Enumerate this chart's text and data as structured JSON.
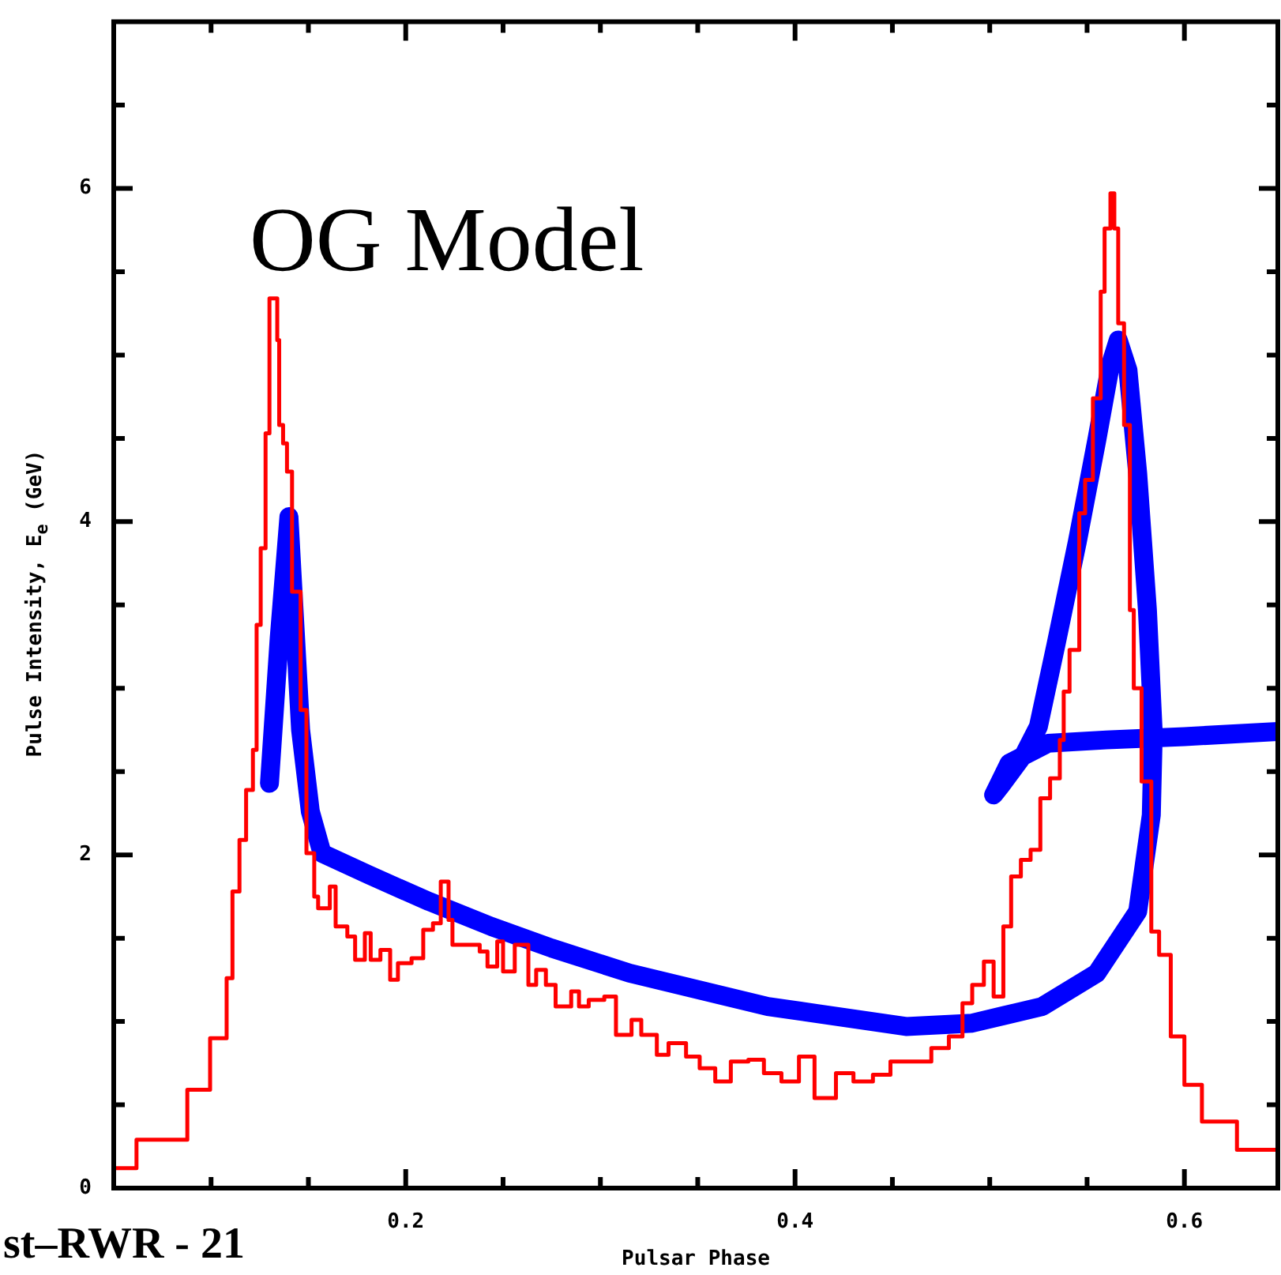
{
  "chart_data": {
    "type": "step",
    "xlabel": "Pulsar Phase",
    "ylabel": "Pulse Intensity, E$_{e}$ (GeV)",
    "annotations": [
      "OG Model",
      "st–RWR - 21"
    ],
    "xlim": [
      0.05,
      0.648
    ],
    "ylim": [
      0,
      7
    ],
    "xticks": [
      {
        "value": 0.05,
        "label": null
      },
      {
        "value": 0.1,
        "label": null
      },
      {
        "value": 0.15,
        "label": null
      },
      {
        "value": 0.2,
        "label": "0.2"
      },
      {
        "value": 0.25,
        "label": null
      },
      {
        "value": 0.3,
        "label": null
      },
      {
        "value": 0.35,
        "label": null
      },
      {
        "value": 0.4,
        "label": "0.4"
      },
      {
        "value": 0.45,
        "label": null
      },
      {
        "value": 0.5,
        "label": null
      },
      {
        "value": 0.55,
        "label": null
      },
      {
        "value": 0.6,
        "label": "0.6"
      }
    ],
    "yticks": [
      0,
      {
        "value": 0.5,
        "label": null
      },
      {
        "value": 1,
        "label": null
      },
      {
        "value": 1.5,
        "label": null
      },
      2,
      {
        "value": 2.5,
        "label": null
      },
      {
        "value": 3,
        "label": null
      },
      {
        "value": 3.5,
        "label": null
      },
      4,
      {
        "value": 4.5,
        "label": null
      },
      {
        "value": 5,
        "label": null
      },
      {
        "value": 5.5,
        "label": null
      },
      6,
      {
        "value": 6.5,
        "label": null
      }
    ],
    "marker": "none",
    "series": [
      {
        "color": "#ff0000",
        "x": [
          0.05,
          0.0617,
          0.0878,
          0.0995,
          0.108,
          0.111,
          0.1146,
          0.118,
          0.1215,
          0.1234,
          0.1255,
          0.128,
          0.13,
          0.134,
          0.135,
          0.137,
          0.139,
          0.1416,
          0.146,
          0.149,
          0.153,
          0.155,
          0.161,
          0.164,
          0.17,
          0.174,
          0.179,
          0.182,
          0.187,
          0.192,
          0.196,
          0.203,
          0.209,
          0.214,
          0.218,
          0.222,
          0.224,
          0.238,
          0.242,
          0.247,
          0.25,
          0.256,
          0.263,
          0.267,
          0.272,
          0.277,
          0.285,
          0.289,
          0.294,
          0.302,
          0.308,
          0.316,
          0.321,
          0.329,
          0.335,
          0.344,
          0.351,
          0.359,
          0.367,
          0.376,
          0.384,
          0.393,
          0.402,
          0.41,
          0.421,
          0.43,
          0.44,
          0.449,
          0.458,
          0.47,
          0.479,
          0.486,
          0.491,
          0.497,
          0.502,
          0.507,
          0.511,
          0.516,
          0.521,
          0.526,
          0.531,
          0.536,
          0.538,
          0.541,
          0.546,
          0.549,
          0.553,
          0.557,
          0.559,
          0.562,
          0.564,
          0.566,
          0.569,
          0.572,
          0.574,
          0.578,
          0.583,
          0.587,
          0.593,
          0.6,
          0.609,
          0.627,
          0.648
        ],
        "values": [
          0.12,
          0.29,
          0.59,
          0.9,
          1.26,
          1.78,
          2.09,
          2.39,
          2.63,
          3.38,
          3.84,
          4.53,
          5.34,
          5.09,
          4.58,
          4.47,
          4.3,
          3.58,
          2.87,
          2.01,
          1.75,
          1.68,
          1.81,
          1.57,
          1.51,
          1.37,
          1.53,
          1.37,
          1.43,
          1.25,
          1.35,
          1.38,
          1.55,
          1.59,
          1.84,
          1.61,
          1.46,
          1.42,
          1.33,
          1.48,
          1.3,
          1.46,
          1.22,
          1.31,
          1.22,
          1.09,
          1.18,
          1.09,
          1.13,
          1.15,
          0.92,
          1.01,
          0.92,
          0.8,
          0.87,
          0.79,
          0.72,
          0.64,
          0.76,
          0.77,
          0.69,
          0.64,
          0.79,
          0.54,
          0.69,
          0.64,
          0.68,
          0.76,
          0.76,
          0.84,
          0.91,
          1.11,
          1.22,
          1.36,
          1.15,
          1.57,
          1.87,
          1.97,
          2.03,
          2.34,
          2.46,
          2.69,
          2.98,
          3.23,
          4.05,
          4.25,
          4.74,
          5.38,
          5.76,
          5.97,
          5.76,
          5.19,
          4.58,
          3.47,
          3.0,
          2.44,
          1.54,
          1.4,
          0.91,
          0.62,
          0.4,
          0.23,
          0.23
        ]
      },
      {
        "type": "line",
        "color": "#0000ff",
        "x": [
          0.13,
          0.135,
          0.14,
          0.146,
          0.151,
          0.157,
          0.181,
          0.212,
          0.244,
          0.275,
          0.315,
          0.386,
          0.457,
          0.491,
          0.527,
          0.555,
          0.576,
          0.583,
          0.584,
          0.581,
          0.576,
          0.571,
          0.566,
          0.562,
          0.555,
          0.545,
          0.534,
          0.525,
          0.518,
          0.506,
          0.502,
          0.51,
          0.53,
          0.56,
          0.6,
          0.648
        ],
        "values": [
          2.43,
          3.3,
          4.03,
          2.75,
          2.26,
          2.01,
          1.88,
          1.72,
          1.57,
          1.44,
          1.29,
          1.09,
          0.97,
          0.99,
          1.09,
          1.29,
          1.66,
          2.24,
          2.73,
          3.47,
          4.29,
          4.91,
          5.09,
          4.94,
          4.49,
          3.88,
          3.26,
          2.77,
          2.61,
          2.42,
          2.36,
          2.55,
          2.67,
          2.69,
          2.71,
          2.74
        ]
      }
    ]
  }
}
